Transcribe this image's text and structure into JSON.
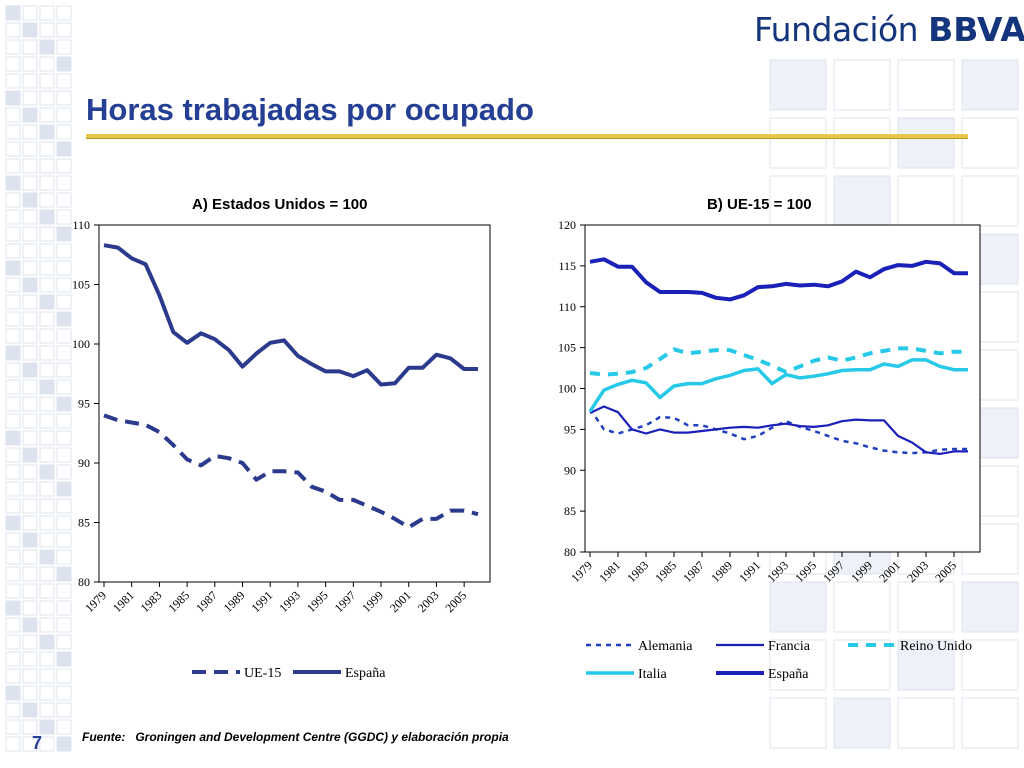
{
  "header": {
    "logo_text": "Fundación",
    "logo_bold": "BBVA",
    "title": "Horas trabajadas por ocupado"
  },
  "footer": {
    "label": "Fuente:",
    "text": "Groningen and Development Centre (GGDC) y elaboración propia",
    "page_number": "7"
  },
  "colors": {
    "dark_blue": "#2b3a8c",
    "navy": "#1a20b8",
    "blue": "#1f3fbf",
    "cyan": "#27c9e8",
    "background_squares": "#dde3ee"
  },
  "chart_data": [
    {
      "type": "line",
      "title": "A) Estados Unidos = 100",
      "xlabel": "",
      "ylabel": "",
      "ylim": [
        80,
        110
      ],
      "yticks": [
        "80",
        "85",
        "90",
        "95",
        "100",
        "105",
        "110"
      ],
      "xticks": [
        "1979",
        "1981",
        "1983",
        "1985",
        "1987",
        "1989",
        "1991",
        "1993",
        "1995",
        "1997",
        "1999",
        "2001",
        "2003",
        "2005"
      ],
      "x": [
        1979,
        1980,
        1981,
        1982,
        1983,
        1984,
        1985,
        1986,
        1987,
        1988,
        1989,
        1990,
        1991,
        1992,
        1993,
        1994,
        1995,
        1996,
        1997,
        1998,
        1999,
        2000,
        2001,
        2002,
        2003,
        2004,
        2005,
        2006
      ],
      "grid": false,
      "legend_position": "bottom",
      "series": [
        {
          "name": "UE-15",
          "style": "dashed",
          "values": [
            94.0,
            93.6,
            93.4,
            93.2,
            92.6,
            91.5,
            90.3,
            89.8,
            90.6,
            90.4,
            90.0,
            88.6,
            89.3,
            89.3,
            89.2,
            88.0,
            87.6,
            86.9,
            86.9,
            86.4,
            85.9,
            85.3,
            84.6,
            85.3,
            85.3,
            86.0,
            86.0,
            85.7
          ]
        },
        {
          "name": "España",
          "style": "solid",
          "values": [
            108.3,
            108.1,
            107.2,
            106.7,
            104.1,
            101.0,
            100.1,
            100.9,
            100.4,
            99.5,
            98.1,
            99.2,
            100.1,
            100.3,
            99.0,
            98.3,
            97.7,
            97.7,
            97.3,
            97.8,
            96.6,
            96.7,
            98.0,
            98.0,
            99.1,
            98.8,
            97.9,
            97.9
          ]
        }
      ]
    },
    {
      "type": "line",
      "title": "B) UE-15 = 100",
      "xlabel": "",
      "ylabel": "",
      "ylim": [
        80,
        120
      ],
      "yticks": [
        "80",
        "85",
        "90",
        "95",
        "100",
        "105",
        "110",
        "115",
        "120"
      ],
      "xticks": [
        "1979",
        "1981",
        "1983",
        "1985",
        "1987",
        "1989",
        "1991",
        "1993",
        "1995",
        "1997",
        "1999",
        "2001",
        "2003",
        "2005"
      ],
      "x": [
        1979,
        1980,
        1981,
        1982,
        1983,
        1984,
        1985,
        1986,
        1987,
        1988,
        1989,
        1990,
        1991,
        1992,
        1993,
        1994,
        1995,
        1996,
        1997,
        1998,
        1999,
        2000,
        2001,
        2002,
        2003,
        2004,
        2005,
        2006
      ],
      "grid": false,
      "legend_position": "bottom",
      "series": [
        {
          "name": "Alemania",
          "style": "dotted",
          "values": [
            97.5,
            95.0,
            94.5,
            95.0,
            95.5,
            96.5,
            96.4,
            95.5,
            95.5,
            95.0,
            94.5,
            93.8,
            94.2,
            95.2,
            96.0,
            95.3,
            94.8,
            94.2,
            93.6,
            93.3,
            92.8,
            92.4,
            92.2,
            92.1,
            92.2,
            92.5,
            92.6,
            92.6
          ]
        },
        {
          "name": "Francia",
          "style": "solid",
          "values": [
            97.0,
            97.8,
            97.1,
            95.0,
            94.5,
            95.0,
            94.6,
            94.6,
            94.8,
            95.0,
            95.2,
            95.3,
            95.2,
            95.5,
            95.7,
            95.4,
            95.3,
            95.5,
            96.0,
            96.2,
            96.1,
            96.1,
            94.2,
            93.4,
            92.2,
            92.0,
            92.3,
            92.3
          ]
        },
        {
          "name": "Reino Unido",
          "style": "dashed",
          "values": [
            101.9,
            101.7,
            101.8,
            102.0,
            102.5,
            103.6,
            104.8,
            104.3,
            104.5,
            104.7,
            104.7,
            104.1,
            103.5,
            102.8,
            102.0,
            102.7,
            103.4,
            103.8,
            103.4,
            103.8,
            104.3,
            104.6,
            104.9,
            104.9,
            104.6,
            104.3,
            104.5,
            104.5
          ]
        },
        {
          "name": "Italia",
          "style": "solid",
          "values": [
            97.2,
            99.8,
            100.5,
            101.0,
            100.7,
            98.9,
            100.3,
            100.6,
            100.6,
            101.2,
            101.6,
            102.2,
            102.4,
            100.6,
            101.7,
            101.3,
            101.5,
            101.8,
            102.2,
            102.3,
            102.3,
            103.0,
            102.7,
            103.5,
            103.5,
            102.7,
            102.3,
            102.3
          ]
        },
        {
          "name": "España",
          "style": "solid",
          "values": [
            115.5,
            115.8,
            114.9,
            114.9,
            113.0,
            111.8,
            111.8,
            111.8,
            111.7,
            111.1,
            110.9,
            111.4,
            112.4,
            112.5,
            112.8,
            112.6,
            112.7,
            112.5,
            113.1,
            114.3,
            113.6,
            114.6,
            115.1,
            115.0,
            115.5,
            115.3,
            114.1,
            114.1
          ]
        }
      ]
    }
  ]
}
